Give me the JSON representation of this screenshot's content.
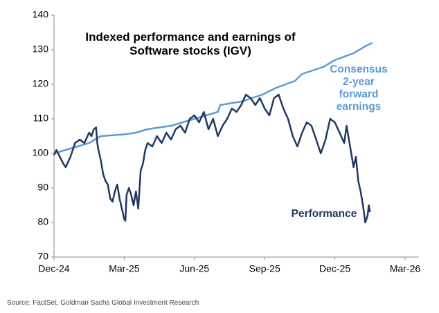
{
  "chart_data": {
    "type": "line",
    "title": "Indexed performance and earnings of Software stocks (IGV)",
    "source": "Source: FactSet, Goldman Sachs Global Investment Research",
    "xlim": [
      0,
      15
    ],
    "xticks": [
      {
        "value": 0,
        "label": "Dec-24"
      },
      {
        "value": 3,
        "label": "Mar-25"
      },
      {
        "value": 6,
        "label": "Jun-25"
      },
      {
        "value": 9,
        "label": "Sep-25"
      },
      {
        "value": 12,
        "label": "Dec-25"
      },
      {
        "value": 15,
        "label": "Mar-26"
      }
    ],
    "ylim": [
      70,
      140
    ],
    "yticks": [
      70,
      80,
      90,
      100,
      110,
      120,
      130,
      140
    ],
    "grid": false,
    "series": [
      {
        "name": "Consensus 2-year forward earnings",
        "color": "#5b9bd5",
        "x": [
          0,
          0.5,
          1,
          1.5,
          2,
          3,
          3.5,
          4,
          5,
          5.5,
          6.5,
          7,
          7.1,
          8,
          8.9,
          9.5,
          10.3,
          10.6,
          11.5,
          12,
          12.8,
          13.3,
          13.6
        ],
        "values": [
          100,
          101,
          102,
          103,
          105,
          105.5,
          106,
          107,
          108,
          109,
          111,
          112,
          114,
          115,
          117,
          119,
          121,
          123,
          125,
          127,
          129,
          131,
          132
        ]
      },
      {
        "name": "Performance",
        "color": "#1f3864",
        "x": [
          0,
          0.1,
          0.4,
          0.5,
          0.7,
          0.9,
          1.1,
          1.3,
          1.5,
          1.6,
          1.7,
          1.8,
          1.85,
          1.9,
          2.0,
          2.1,
          2.2,
          2.3,
          2.4,
          2.5,
          2.6,
          2.7,
          2.8,
          2.9,
          3.0,
          3.05,
          3.1,
          3.2,
          3.3,
          3.4,
          3.5,
          3.6,
          3.7,
          3.8,
          3.9,
          4.0,
          4.2,
          4.4,
          4.6,
          4.8,
          5.0,
          5.2,
          5.4,
          5.6,
          5.8,
          6.0,
          6.2,
          6.4,
          6.6,
          6.8,
          7.0,
          7.2,
          7.4,
          7.6,
          7.8,
          8.0,
          8.2,
          8.4,
          8.6,
          8.8,
          9.0,
          9.2,
          9.4,
          9.6,
          9.8,
          10.0,
          10.2,
          10.4,
          10.6,
          10.8,
          11.0,
          11.2,
          11.4,
          11.6,
          11.8,
          12.0,
          12.2,
          12.4,
          12.5,
          12.6,
          12.7,
          12.8,
          12.9,
          13.0,
          13.1,
          13.2,
          13.3,
          13.4,
          13.45,
          13.5
        ],
        "values": [
          99.5,
          101,
          97,
          96,
          99,
          103,
          104,
          103,
          106,
          105,
          107,
          107.5,
          103,
          101,
          98,
          94,
          92,
          91,
          87,
          86,
          89,
          91,
          87,
          84,
          81,
          80.5,
          88,
          90,
          88,
          85,
          89,
          84,
          95,
          97,
          101,
          103,
          102,
          105,
          103,
          106,
          104,
          107,
          108,
          106,
          110,
          111,
          109,
          112,
          107,
          110,
          105,
          108,
          110,
          113,
          112,
          114,
          117,
          116,
          114,
          116,
          113,
          111,
          116,
          117,
          113,
          110,
          105,
          102,
          106,
          109,
          108,
          104,
          100,
          104,
          110,
          109,
          106,
          103,
          108,
          104,
          100,
          96,
          99,
          92,
          89,
          85,
          80,
          82,
          85,
          83
        ]
      }
    ]
  }
}
